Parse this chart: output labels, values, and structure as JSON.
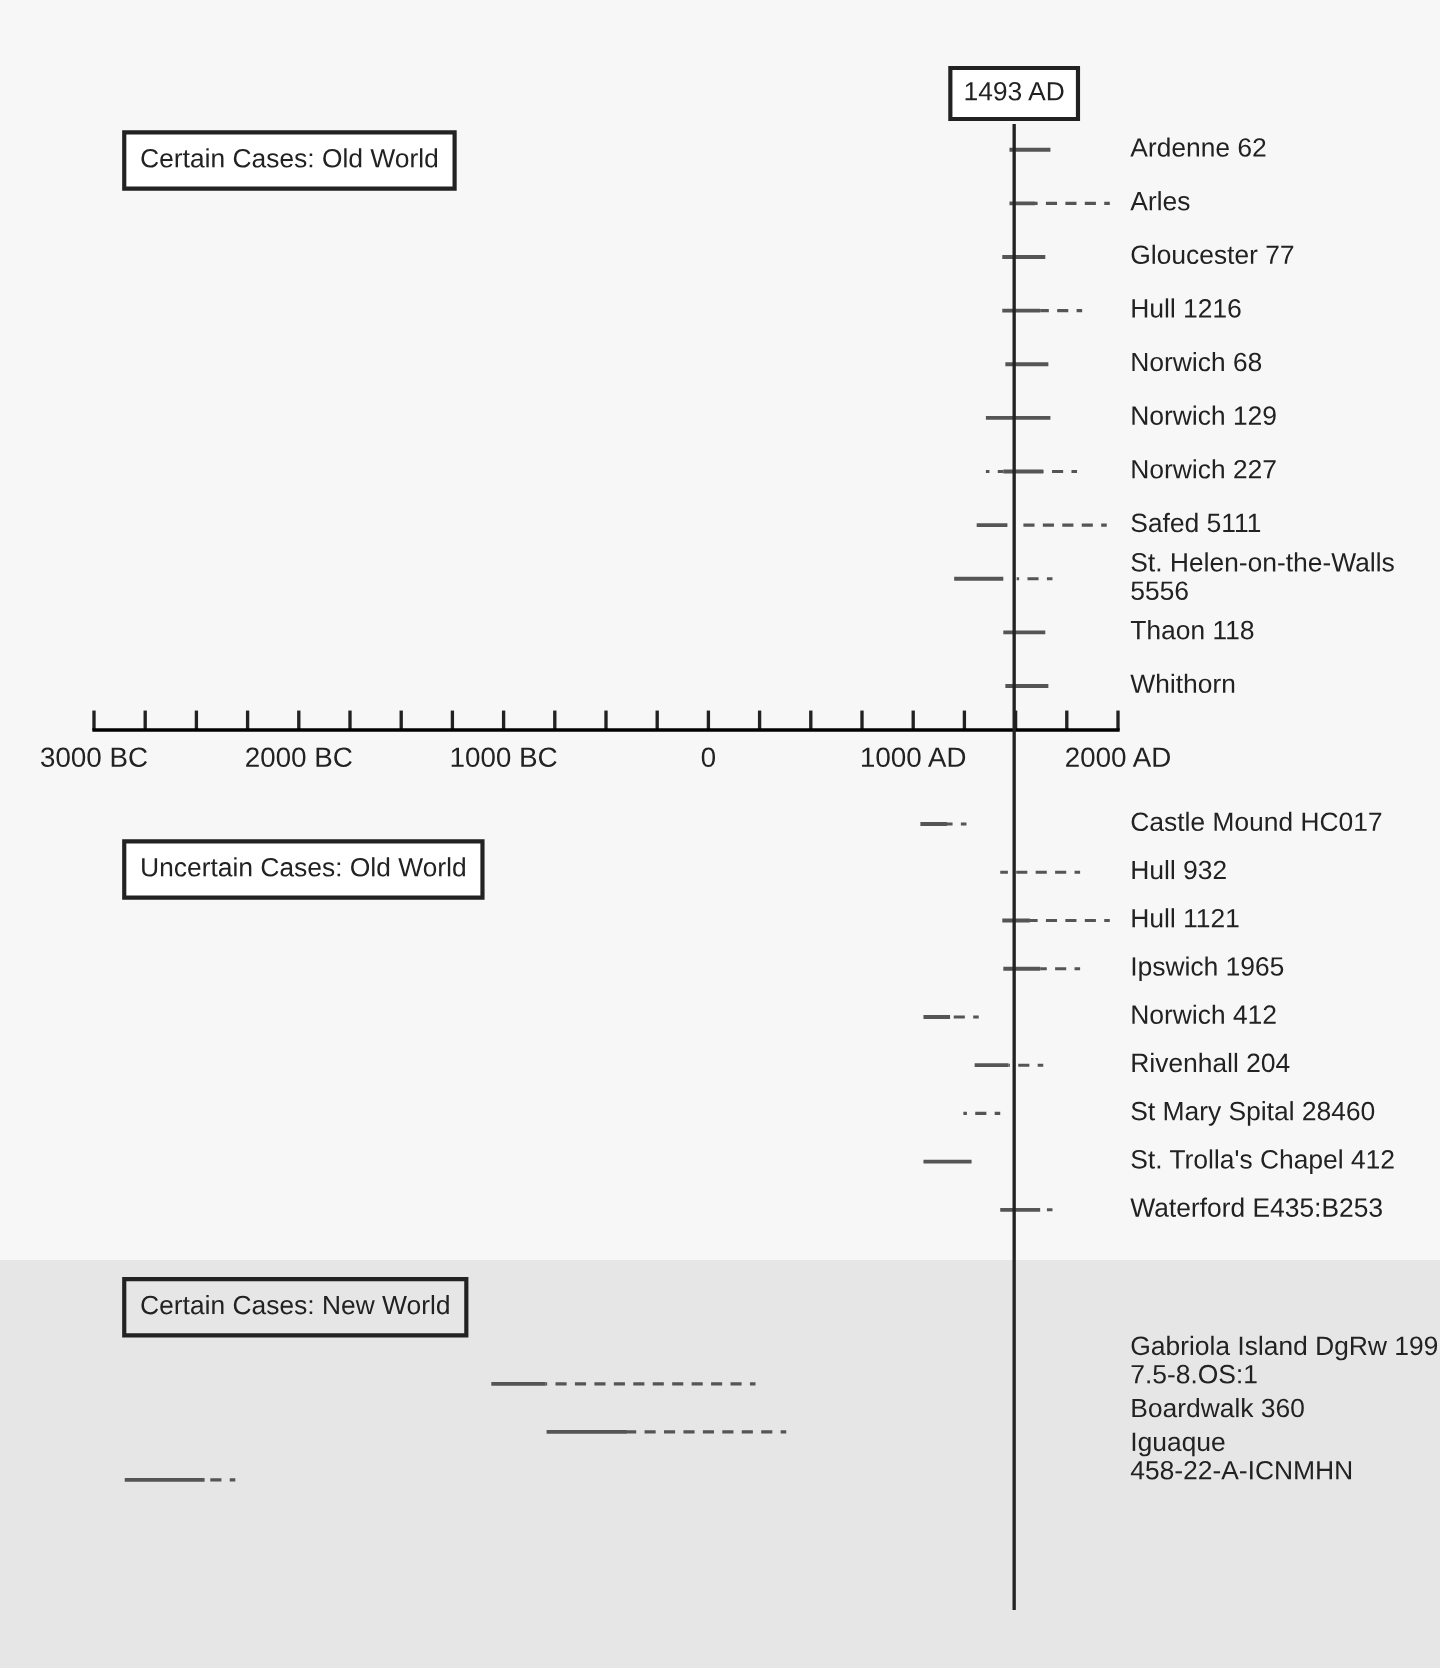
{
  "chart_data": [
    {
      "type": "bar",
      "orientation": "horizontal",
      "title": "Certain Cases: Old World",
      "categories": [
        "Ardenne 62",
        "Arles",
        "Gloucester 77",
        "Hull 1216",
        "Norwich 68",
        "Norwich 129",
        "Norwich 227",
        "Safed 5111",
        "St. Helen-on-the-Walls 5556",
        "Thaon 118",
        "Whithorn"
      ],
      "series": [
        {
          "color": "#555555",
          "line_style": "dashed",
          "base": [
            null,
            null,
            null,
            null,
            null,
            null,
            1355,
            null,
            null,
            null,
            null
          ],
          "values": [
            null,
            null,
            null,
            null,
            null,
            null,
            85,
            null,
            null,
            null,
            null
          ]
        },
        {
          "color": "#555555",
          "line_style": "solid",
          "base": [
            1470,
            1470,
            1435,
            1435,
            1450,
            1355,
            1440,
            1310,
            1200,
            1440,
            1450
          ],
          "values": [
            200,
            125,
            210,
            185,
            210,
            315,
            195,
            150,
            240,
            205,
            210
          ]
        },
        {
          "color": "#555555",
          "line_style": "dashed",
          "base": [
            null,
            1595,
            null,
            1620,
            null,
            null,
            1635,
            1520,
            1505,
            null,
            null
          ],
          "values": [
            null,
            365,
            null,
            205,
            null,
            null,
            165,
            425,
            175,
            null,
            null
          ]
        }
      ],
      "xlim": [
        -3000,
        2000
      ],
      "xticks": [
        {
          "value": -3000,
          "label": "3000 BC"
        },
        {
          "value": -2750,
          "label": null
        },
        {
          "value": -2500,
          "label": null
        },
        {
          "value": -2250,
          "label": null
        },
        {
          "value": -2000,
          "label": "2000 BC"
        },
        {
          "value": -1750,
          "label": null
        },
        {
          "value": -1500,
          "label": null
        },
        {
          "value": -1250,
          "label": null
        },
        {
          "value": -1000,
          "label": "1000 BC"
        },
        {
          "value": -750,
          "label": null
        },
        {
          "value": -500,
          "label": null
        },
        {
          "value": -250,
          "label": null
        },
        0,
        {
          "value": 250,
          "label": null
        },
        {
          "value": 500,
          "label": null
        },
        {
          "value": 750,
          "label": null
        },
        {
          "value": 1000,
          "label": "1000 AD"
        },
        {
          "value": 1250,
          "label": null
        },
        {
          "value": 1500,
          "label": null
        },
        {
          "value": 1750,
          "label": null
        },
        {
          "value": 2000,
          "label": "2000 AD"
        }
      ],
      "ref_lines": [
        {
          "axis": "x",
          "value": 1493,
          "label": "1493 AD",
          "color": "#222222"
        }
      ],
      "tick_labels": "x",
      "grid": false,
      "legend": false
    },
    {
      "type": "bar",
      "orientation": "horizontal",
      "title": "Uncertain Cases: Old World",
      "categories": [
        "Castle Mound HC017",
        "Hull 932",
        "Hull 1121",
        "Ipswich 1965",
        "Norwich 412",
        "Rivenhall 204",
        "St Mary Spital 28460",
        "St. Trolla's Chapel 412",
        "Waterford E435:B253"
      ],
      "series": [
        {
          "color": "#555555",
          "line_style": "solid",
          "base": [
            1035,
            null,
            1435,
            1440,
            1050,
            1300,
            null,
            1050,
            1425
          ],
          "values": [
            130,
            null,
            135,
            180,
            130,
            165,
            null,
            235,
            195
          ]
        },
        {
          "color": "#555555",
          "line_style": "dashed",
          "base": [
            1165,
            1425,
            1570,
            1620,
            1180,
            1465,
            1245,
            null,
            1620
          ],
          "values": [
            95,
            390,
            390,
            195,
            140,
            170,
            180,
            null,
            60
          ]
        }
      ],
      "xlim": [
        -3000,
        2000
      ],
      "ref_lines": [
        {
          "axis": "x",
          "value": 1493,
          "color": "#222222"
        }
      ],
      "tick_labels": false,
      "grid": false,
      "legend": false
    },
    {
      "type": "bar",
      "orientation": "horizontal",
      "title": "Certain Cases: New World",
      "categories": [
        "Gabriola Island DgRw 199 7.5-8.OS:1",
        "Boardwalk 360",
        "Iguaque 458-22-A-ICNMHN"
      ],
      "series": [
        {
          "color": "#555555",
          "line_style": "solid",
          "base": [
            -1060,
            -790,
            -2850
          ],
          "values": [
            265,
            390,
            390
          ]
        },
        {
          "color": "#555555",
          "line_style": "dashed",
          "base": [
            -795,
            -405,
            -2460
          ],
          "values": [
            1025,
            785,
            150
          ]
        }
      ],
      "xlim": [
        -3000,
        2000
      ],
      "ref_lines": [
        {
          "axis": "x",
          "value": 1493,
          "color": "#222222"
        }
      ],
      "tick_labels": false,
      "grid": false,
      "legend": false
    }
  ]
}
